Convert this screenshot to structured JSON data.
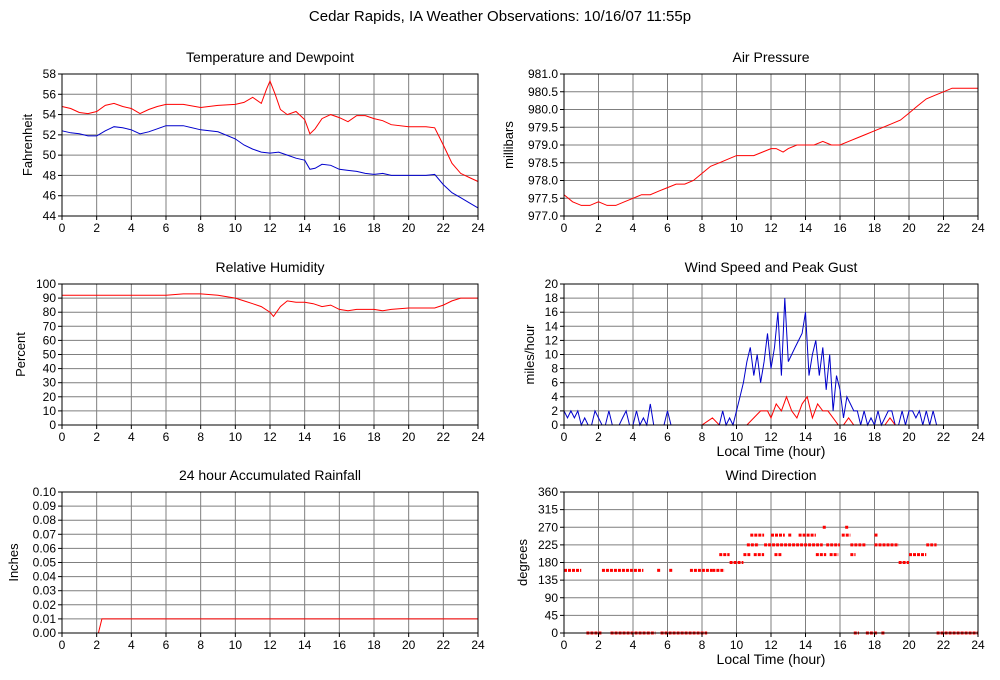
{
  "page": {
    "title": "Cedar Rapids, IA Weather Observations: 10/16/07 11:55p"
  },
  "colors": {
    "red": "#ff0000",
    "blue": "#0000cc",
    "grid": "#7f7f7f"
  },
  "chart_data": [
    {
      "id": "temp",
      "type": "line",
      "title": "Temperature and Dewpoint",
      "xlabel": "",
      "ylabel": "Fahrenheit",
      "xlim": [
        0,
        24
      ],
      "ylim": [
        44,
        58
      ],
      "xticks": [
        0,
        2,
        4,
        6,
        8,
        10,
        12,
        14,
        16,
        18,
        20,
        22,
        24
      ],
      "yticks": [
        44,
        46,
        48,
        50,
        52,
        54,
        56,
        58
      ],
      "ytick_labels": [
        "44",
        "46",
        "48",
        "50",
        "52",
        "54",
        "56",
        "58"
      ],
      "grid": true,
      "series": [
        {
          "color": "red",
          "x": [
            0,
            0.5,
            1,
            1.5,
            2,
            2.5,
            3,
            3.5,
            4,
            4.5,
            5,
            5.5,
            6,
            7,
            8,
            9,
            10,
            10.5,
            11,
            11.5,
            11.8,
            12,
            12.3,
            12.6,
            13,
            13.5,
            14,
            14.3,
            14.6,
            15,
            15.5,
            16,
            16.5,
            17,
            17.5,
            18,
            18.5,
            19,
            20,
            21,
            21.5,
            22,
            22.5,
            23,
            23.5,
            24
          ],
          "y": [
            54.8,
            54.6,
            54.2,
            54.1,
            54.3,
            54.9,
            55.1,
            54.8,
            54.6,
            54.1,
            54.5,
            54.8,
            55.0,
            55.0,
            54.7,
            54.9,
            55.0,
            55.2,
            55.7,
            55.1,
            56.5,
            57.3,
            56.0,
            54.5,
            54.0,
            54.3,
            53.5,
            52.1,
            52.6,
            53.6,
            54.0,
            53.7,
            53.3,
            53.9,
            53.9,
            53.6,
            53.4,
            53.0,
            52.8,
            52.8,
            52.7,
            51.0,
            49.2,
            48.2,
            47.8,
            47.4
          ]
        },
        {
          "color": "blue",
          "x": [
            0,
            0.5,
            1,
            1.5,
            2,
            2.5,
            3,
            3.5,
            4,
            4.5,
            5,
            5.5,
            6,
            7,
            8,
            9,
            10,
            10.5,
            11,
            11.5,
            12,
            12.5,
            13,
            13.5,
            14,
            14.3,
            14.6,
            15,
            15.5,
            16,
            16.5,
            17,
            17.5,
            18,
            18.5,
            19,
            20,
            21,
            21.5,
            22,
            22.5,
            23,
            23.5,
            24
          ],
          "y": [
            52.4,
            52.2,
            52.1,
            51.9,
            51.9,
            52.4,
            52.8,
            52.7,
            52.5,
            52.1,
            52.3,
            52.6,
            52.9,
            52.9,
            52.5,
            52.3,
            51.6,
            51.0,
            50.6,
            50.3,
            50.2,
            50.3,
            50.0,
            49.7,
            49.5,
            48.6,
            48.7,
            49.1,
            49.0,
            48.6,
            48.5,
            48.4,
            48.2,
            48.1,
            48.2,
            48.0,
            48.0,
            48.0,
            48.1,
            47.1,
            46.3,
            45.8,
            45.3,
            44.8
          ]
        }
      ]
    },
    {
      "id": "pressure",
      "type": "line",
      "title": "Air Pressure",
      "xlabel": "",
      "ylabel": "millibars",
      "xlim": [
        0,
        24
      ],
      "ylim": [
        977.0,
        981.0
      ],
      "xticks": [
        0,
        2,
        4,
        6,
        8,
        10,
        12,
        14,
        16,
        18,
        20,
        22,
        24
      ],
      "yticks": [
        977.0,
        977.5,
        978.0,
        978.5,
        979.0,
        979.5,
        980.0,
        980.5,
        981.0
      ],
      "ytick_labels": [
        "977.0",
        "977.5",
        "978.0",
        "978.5",
        "979.0",
        "979.5",
        "980.0",
        "980.5",
        "981.0"
      ],
      "grid": true,
      "series": [
        {
          "color": "red",
          "x": [
            0,
            0.5,
            1,
            1.5,
            2,
            2.5,
            3,
            3.5,
            4,
            4.5,
            5,
            5.5,
            6,
            6.5,
            7,
            7.5,
            8,
            8.5,
            9,
            9.5,
            10,
            10.5,
            11,
            11.5,
            12,
            12.3,
            12.7,
            13,
            13.5,
            14,
            14.5,
            15,
            15.5,
            16,
            16.5,
            17,
            17.5,
            18,
            18.5,
            19,
            19.5,
            20,
            20.5,
            21,
            21.5,
            22,
            22.5,
            23,
            23.5,
            24
          ],
          "y": [
            977.6,
            977.4,
            977.3,
            977.3,
            977.4,
            977.3,
            977.3,
            977.4,
            977.5,
            977.6,
            977.6,
            977.7,
            977.8,
            977.9,
            977.9,
            978.0,
            978.2,
            978.4,
            978.5,
            978.6,
            978.7,
            978.7,
            978.7,
            978.8,
            978.9,
            978.9,
            978.8,
            978.9,
            979.0,
            979.0,
            979.0,
            979.1,
            979.0,
            979.0,
            979.1,
            979.2,
            979.3,
            979.4,
            979.5,
            979.6,
            979.7,
            979.9,
            980.1,
            980.3,
            980.4,
            980.5,
            980.6,
            980.6,
            980.6,
            980.6
          ]
        }
      ]
    },
    {
      "id": "humidity",
      "type": "line",
      "title": "Relative Humidity",
      "xlabel": "",
      "ylabel": "Percent",
      "xlim": [
        0,
        24
      ],
      "ylim": [
        0,
        100
      ],
      "xticks": [
        0,
        2,
        4,
        6,
        8,
        10,
        12,
        14,
        16,
        18,
        20,
        22,
        24
      ],
      "yticks": [
        0,
        10,
        20,
        30,
        40,
        50,
        60,
        70,
        80,
        90,
        100
      ],
      "ytick_labels": [
        "0",
        "10",
        "20",
        "30",
        "40",
        "50",
        "60",
        "70",
        "80",
        "90",
        "100"
      ],
      "grid": true,
      "series": [
        {
          "color": "red",
          "x": [
            0,
            2,
            4,
            6,
            7,
            8,
            9,
            10,
            10.5,
            11,
            11.5,
            12,
            12.2,
            12.6,
            13,
            13.5,
            14,
            14.5,
            15,
            15.5,
            16,
            16.5,
            17,
            18,
            18.5,
            19,
            20,
            21,
            21.5,
            22,
            22.5,
            23,
            24
          ],
          "y": [
            92,
            92,
            92,
            92,
            93,
            93,
            92,
            90,
            88,
            86,
            84,
            80,
            77,
            84,
            88,
            87,
            87,
            86,
            84,
            85,
            82,
            81,
            82,
            82,
            81,
            82,
            83,
            83,
            83,
            85,
            88,
            90,
            90
          ]
        }
      ]
    },
    {
      "id": "wind",
      "type": "line",
      "title": "Wind Speed and Peak Gust",
      "xlabel": "Local Time (hour)",
      "ylabel": "miles/hour",
      "xlim": [
        0,
        24
      ],
      "ylim": [
        0,
        20
      ],
      "xticks": [
        0,
        2,
        4,
        6,
        8,
        10,
        12,
        14,
        16,
        18,
        20,
        22,
        24
      ],
      "yticks": [
        0,
        2,
        4,
        6,
        8,
        10,
        12,
        14,
        16,
        18,
        20
      ],
      "ytick_labels": [
        "0",
        "2",
        "4",
        "6",
        "8",
        "10",
        "12",
        "14",
        "16",
        "18",
        "20"
      ],
      "grid": true,
      "series": [
        {
          "color": "blue",
          "x": [
            0,
            0.2,
            0.4,
            0.6,
            0.8,
            1.0,
            1.2,
            1.4,
            1.6,
            1.8,
            2.0,
            2.2,
            2.4,
            2.6,
            2.8,
            3.0,
            3.2,
            3.4,
            3.6,
            3.8,
            4.0,
            4.2,
            4.4,
            4.6,
            4.8,
            5.0,
            5.2,
            5.4,
            5.6,
            5.8,
            6.0,
            6.2,
            6.4,
            6.6,
            6.8,
            7.0,
            7.2,
            7.4,
            7.6,
            7.8,
            8.0,
            8.2,
            8.4,
            8.6,
            8.8,
            9.0,
            9.2,
            9.4,
            9.6,
            9.8,
            10.0,
            10.2,
            10.4,
            10.6,
            10.8,
            11.0,
            11.2,
            11.4,
            11.6,
            11.8,
            12.0,
            12.2,
            12.4,
            12.6,
            12.8,
            13.0,
            13.2,
            13.4,
            13.6,
            13.8,
            14.0,
            14.2,
            14.4,
            14.6,
            14.8,
            15.0,
            15.2,
            15.4,
            15.6,
            15.8,
            16.0,
            16.2,
            16.4,
            16.6,
            16.8,
            17.0,
            17.2,
            17.4,
            17.6,
            17.8,
            18.0,
            18.2,
            18.4,
            18.6,
            18.8,
            19.0,
            19.2,
            19.4,
            19.6,
            19.8,
            20.0,
            20.2,
            20.4,
            20.6,
            20.8,
            21.0,
            21.2,
            21.4,
            21.6
          ],
          "y": [
            2,
            1,
            2,
            1,
            2,
            0,
            1,
            0,
            0,
            2,
            1,
            0,
            0,
            2,
            0,
            0,
            0,
            1,
            2,
            0,
            0,
            2,
            0,
            1,
            0,
            3,
            0,
            0,
            0,
            0,
            2,
            0,
            0,
            0,
            0,
            0,
            0,
            0,
            0,
            0,
            0,
            0,
            0,
            0,
            0,
            0,
            2,
            0,
            1,
            0,
            2,
            4,
            6,
            9,
            11,
            7,
            10,
            6,
            9,
            13,
            8,
            11,
            16,
            7,
            18,
            9,
            10,
            11,
            12,
            13,
            16,
            7,
            10,
            12,
            7,
            11,
            5,
            10,
            2,
            7,
            5,
            1,
            4,
            3,
            2,
            2,
            0,
            2,
            0,
            1,
            0,
            2,
            0,
            1,
            2,
            2,
            0,
            0,
            2,
            0,
            2,
            2,
            1,
            2,
            0,
            2,
            0,
            2,
            0
          ]
        },
        {
          "color": "red",
          "x": [
            0,
            8,
            8.6,
            9,
            9.4,
            9.8,
            10.2,
            10.6,
            11,
            11.4,
            11.8,
            12,
            12.3,
            12.6,
            12.9,
            13.2,
            13.5,
            13.8,
            14.1,
            14.4,
            14.7,
            15,
            15.3,
            15.6,
            15.9,
            16.2,
            16.5,
            16.8,
            17.1,
            17.4,
            17.7,
            18,
            18.3,
            18.6,
            18.9,
            19.2,
            19.5,
            19.8,
            20.1,
            20.4,
            20.7,
            21,
            21.3,
            21.6,
            24
          ],
          "y": [
            0,
            0,
            1,
            0,
            0,
            0,
            0,
            0,
            1,
            2,
            2,
            1,
            3,
            2,
            4,
            2,
            1,
            3,
            4,
            1,
            3,
            2,
            2,
            1,
            0,
            0,
            1,
            0,
            0,
            0,
            0,
            0,
            0,
            0,
            1,
            0,
            0,
            0,
            0,
            0,
            0,
            0,
            0,
            0,
            0
          ]
        }
      ]
    },
    {
      "id": "rain",
      "type": "line",
      "title": "24 hour Accumulated Rainfall",
      "xlabel": "",
      "ylabel": "Inches",
      "xlim": [
        0,
        24
      ],
      "ylim": [
        0,
        0.1
      ],
      "xticks": [
        0,
        2,
        4,
        6,
        8,
        10,
        12,
        14,
        16,
        18,
        20,
        22,
        24
      ],
      "yticks": [
        0,
        0.01,
        0.02,
        0.03,
        0.04,
        0.05,
        0.06,
        0.07,
        0.08,
        0.09,
        0.1
      ],
      "ytick_labels": [
        "0.00",
        "0.01",
        "0.02",
        "0.03",
        "0.04",
        "0.05",
        "0.06",
        "0.07",
        "0.08",
        "0.09",
        "0.10"
      ],
      "grid": true,
      "series": [
        {
          "color": "red",
          "x": [
            0,
            2.1,
            2.3,
            24
          ],
          "y": [
            0,
            0,
            0.01,
            0.01
          ]
        }
      ]
    },
    {
      "id": "direction",
      "type": "scatter",
      "title": "Wind Direction",
      "xlabel": "Local Time (hour)",
      "ylabel": "degrees",
      "xlim": [
        0,
        24
      ],
      "ylim": [
        0,
        360
      ],
      "xticks": [
        0,
        2,
        4,
        6,
        8,
        10,
        12,
        14,
        16,
        18,
        20,
        22,
        24
      ],
      "yticks": [
        0,
        45,
        90,
        135,
        180,
        225,
        270,
        315,
        360
      ],
      "ytick_labels": [
        "0",
        "45",
        "90",
        "135",
        "180",
        "225",
        "270",
        "315",
        "360"
      ],
      "grid": true,
      "segments": [
        {
          "x0": 0.0,
          "x1": 1.0,
          "y": 160
        },
        {
          "x0": 1.3,
          "x1": 2.2,
          "y": 0
        },
        {
          "x0": 2.2,
          "x1": 4.6,
          "y": 160
        },
        {
          "x0": 2.7,
          "x1": 4.8,
          "y": 0
        },
        {
          "x0": 4.8,
          "x1": 5.3,
          "y": 0
        },
        {
          "x0": 5.4,
          "x1": 5.6,
          "y": 160
        },
        {
          "x0": 5.6,
          "x1": 8.3,
          "y": 0
        },
        {
          "x0": 6.1,
          "x1": 6.3,
          "y": 160
        },
        {
          "x0": 7.3,
          "x1": 8.6,
          "y": 160
        },
        {
          "x0": 8.6,
          "x1": 9.3,
          "y": 160
        },
        {
          "x0": 9.0,
          "x1": 9.6,
          "y": 200
        },
        {
          "x0": 9.6,
          "x1": 10.4,
          "y": 180
        },
        {
          "x0": 10.4,
          "x1": 10.8,
          "y": 200
        },
        {
          "x0": 10.6,
          "x1": 11.3,
          "y": 225
        },
        {
          "x0": 10.8,
          "x1": 11.6,
          "y": 250
        },
        {
          "x0": 11.0,
          "x1": 11.6,
          "y": 200
        },
        {
          "x0": 11.6,
          "x1": 15.0,
          "y": 225
        },
        {
          "x0": 12.0,
          "x1": 12.8,
          "y": 250
        },
        {
          "x0": 12.2,
          "x1": 12.6,
          "y": 200
        },
        {
          "x0": 13.0,
          "x1": 13.2,
          "y": 250
        },
        {
          "x0": 13.6,
          "x1": 14.6,
          "y": 250
        },
        {
          "x0": 14.6,
          "x1": 15.2,
          "y": 200
        },
        {
          "x0": 15.0,
          "x1": 15.2,
          "y": 270
        },
        {
          "x0": 15.2,
          "x1": 16.0,
          "y": 225
        },
        {
          "x0": 15.4,
          "x1": 15.9,
          "y": 200
        },
        {
          "x0": 16.1,
          "x1": 16.6,
          "y": 250
        },
        {
          "x0": 16.3,
          "x1": 16.5,
          "y": 270
        },
        {
          "x0": 16.6,
          "x1": 17.5,
          "y": 225
        },
        {
          "x0": 16.6,
          "x1": 16.9,
          "y": 200
        },
        {
          "x0": 16.8,
          "x1": 17.1,
          "y": 0
        },
        {
          "x0": 17.5,
          "x1": 18.2,
          "y": 0
        },
        {
          "x0": 18.0,
          "x1": 18.2,
          "y": 250
        },
        {
          "x0": 18.0,
          "x1": 19.4,
          "y": 225
        },
        {
          "x0": 18.4,
          "x1": 18.6,
          "y": 0
        },
        {
          "x0": 19.4,
          "x1": 20.0,
          "y": 180
        },
        {
          "x0": 20.0,
          "x1": 21.0,
          "y": 200
        },
        {
          "x0": 21.0,
          "x1": 21.6,
          "y": 225
        },
        {
          "x0": 21.6,
          "x1": 24.0,
          "y": 0
        }
      ]
    }
  ]
}
